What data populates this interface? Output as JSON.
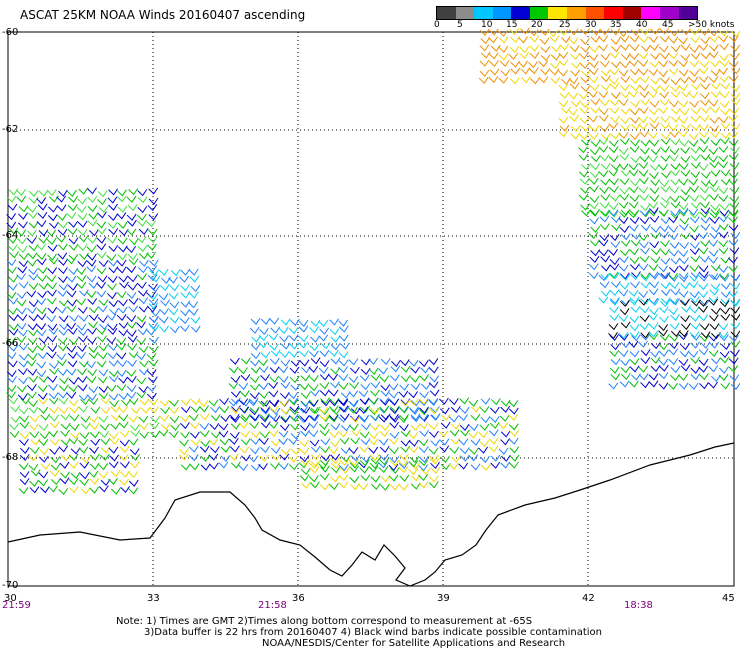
{
  "title": "ASCAT 25KM NOAA Winds 20160407 ascending",
  "legend": {
    "labels": [
      "0",
      "5",
      "10",
      "15",
      "20",
      "25",
      "30",
      "35",
      "40",
      "45",
      ">50 knots"
    ],
    "colors": [
      "#404040",
      "#8c8c8c",
      "#00c8ff",
      "#0096ff",
      "#0000d2",
      "#00c800",
      "#ffe600",
      "#ffa000",
      "#ff5000",
      "#ff0000",
      "#a00000",
      "#ff00ff",
      "#a000c8",
      "#500096"
    ]
  },
  "lat_labels": [
    "-60",
    "-62",
    "-64",
    "-66",
    "-68",
    "-70"
  ],
  "lon_labels": [
    "30",
    "33",
    "36",
    "39",
    "42",
    "45"
  ],
  "time_labels": [
    "21:59",
    "21:58",
    "18:38"
  ],
  "notes": {
    "line1": "Note: 1) Times are GMT 2)Times along bottom correspond to measurement at -65S",
    "line2": "3)Data buffer is 22 hrs from 20160407 4) Black wind barbs indicate possible contamination",
    "line3": "NOAA/NESDIS/Center for Satellite Applications and Research"
  }
}
